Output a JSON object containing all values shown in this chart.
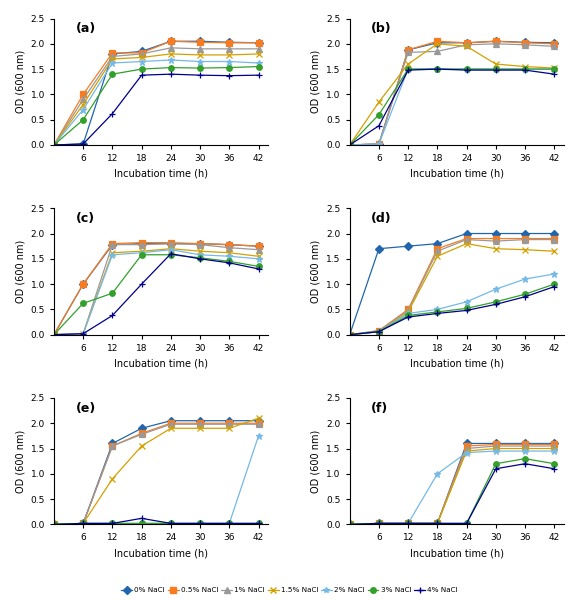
{
  "x": [
    0,
    6,
    12,
    18,
    24,
    30,
    36,
    42
  ],
  "panels": {
    "a": {
      "label": "(a)",
      "series": {
        "0% NaCl": [
          0,
          0.02,
          1.8,
          1.85,
          2.05,
          2.05,
          2.03,
          2.02
        ],
        "0.5% NaCl": [
          0,
          1.0,
          1.82,
          1.82,
          2.05,
          2.03,
          2.02,
          2.02
        ],
        "1% NaCl": [
          0,
          0.9,
          1.75,
          1.8,
          1.92,
          1.9,
          1.9,
          1.9
        ],
        "1.5% NaCl": [
          0,
          0.8,
          1.7,
          1.73,
          1.8,
          1.78,
          1.78,
          1.8
        ],
        "2% NaCl": [
          0,
          0.7,
          1.62,
          1.65,
          1.68,
          1.65,
          1.65,
          1.62
        ],
        "3% NaCl": [
          0,
          0.5,
          1.4,
          1.5,
          1.53,
          1.52,
          1.53,
          1.55
        ],
        "4% NaCl": [
          0,
          0.02,
          0.62,
          1.38,
          1.4,
          1.38,
          1.37,
          1.38
        ]
      }
    },
    "b": {
      "label": "(b)",
      "series": {
        "0% NaCl": [
          0,
          0.02,
          1.88,
          2.02,
          2.02,
          2.05,
          2.03,
          2.02
        ],
        "0.5% NaCl": [
          0,
          0.02,
          1.88,
          2.05,
          2.02,
          2.05,
          2.02,
          2.0
        ],
        "1% NaCl": [
          0,
          0.02,
          1.83,
          1.85,
          1.98,
          2.0,
          1.98,
          1.95
        ],
        "1.5% NaCl": [
          0,
          0.85,
          1.6,
          2.0,
          1.95,
          1.6,
          1.55,
          1.52
        ],
        "2% NaCl": [
          0,
          0.02,
          1.5,
          1.5,
          1.5,
          1.5,
          1.5,
          1.5
        ],
        "3% NaCl": [
          0,
          0.6,
          1.5,
          1.5,
          1.5,
          1.5,
          1.5,
          1.5
        ],
        "4% NaCl": [
          0,
          0.38,
          1.48,
          1.5,
          1.48,
          1.48,
          1.48,
          1.4
        ]
      }
    },
    "c": {
      "label": "(c)",
      "series": {
        "0% NaCl": [
          0,
          1.0,
          1.78,
          1.8,
          1.8,
          1.8,
          1.78,
          1.75
        ],
        "0.5% NaCl": [
          0,
          1.0,
          1.8,
          1.82,
          1.82,
          1.8,
          1.78,
          1.75
        ],
        "1% NaCl": [
          0,
          0.02,
          1.78,
          1.78,
          1.8,
          1.78,
          1.72,
          1.68
        ],
        "1.5% NaCl": [
          0,
          0.02,
          1.62,
          1.65,
          1.7,
          1.65,
          1.62,
          1.55
        ],
        "2% NaCl": [
          0,
          0.02,
          1.58,
          1.62,
          1.68,
          1.58,
          1.55,
          1.5
        ],
        "3% NaCl": [
          0,
          0.62,
          0.82,
          1.58,
          1.58,
          1.52,
          1.45,
          1.35
        ],
        "4% NaCl": [
          0,
          0.02,
          0.38,
          1.0,
          1.6,
          1.5,
          1.42,
          1.3
        ]
      }
    },
    "d": {
      "label": "(d)",
      "series": {
        "0% NaCl": [
          0,
          1.7,
          1.75,
          1.8,
          2.0,
          2.0,
          2.0,
          2.0
        ],
        "0.5% NaCl": [
          0,
          0.08,
          0.5,
          1.7,
          1.9,
          1.9,
          1.9,
          1.9
        ],
        "1% NaCl": [
          0,
          0.08,
          0.48,
          1.65,
          1.88,
          1.85,
          1.88,
          1.88
        ],
        "1.5% NaCl": [
          0,
          0.06,
          0.45,
          1.55,
          1.8,
          1.7,
          1.68,
          1.65
        ],
        "2% NaCl": [
          0,
          0.06,
          0.42,
          0.5,
          0.65,
          0.9,
          1.1,
          1.2
        ],
        "3% NaCl": [
          0,
          0.06,
          0.38,
          0.45,
          0.52,
          0.65,
          0.8,
          1.0
        ],
        "4% NaCl": [
          0,
          0.06,
          0.35,
          0.42,
          0.48,
          0.6,
          0.75,
          0.95
        ]
      }
    },
    "e": {
      "label": "(e)",
      "series": {
        "0% NaCl": [
          0,
          0.02,
          1.6,
          1.9,
          2.05,
          2.05,
          2.05,
          2.05
        ],
        "0.5% NaCl": [
          0,
          0.02,
          1.55,
          1.8,
          2.0,
          2.0,
          2.0,
          2.0
        ],
        "1% NaCl": [
          0,
          0.02,
          1.55,
          1.78,
          1.98,
          1.98,
          1.98,
          1.98
        ],
        "1.5% NaCl": [
          0,
          0.02,
          0.9,
          1.55,
          1.9,
          1.9,
          1.9,
          2.1
        ],
        "2% NaCl": [
          0,
          0.02,
          0.02,
          0.02,
          0.02,
          0.02,
          0.02,
          1.75
        ],
        "3% NaCl": [
          0,
          0.02,
          0.02,
          0.02,
          0.02,
          0.02,
          0.02,
          0.02
        ],
        "4% NaCl": [
          0,
          0.02,
          0.02,
          0.12,
          0.02,
          0.02,
          0.02,
          0.02
        ]
      }
    },
    "f": {
      "label": "(f)",
      "series": {
        "0% NaCl": [
          0,
          0.02,
          0.02,
          0.02,
          1.6,
          1.6,
          1.6,
          1.6
        ],
        "0.5% NaCl": [
          0,
          0.02,
          0.02,
          0.02,
          1.55,
          1.58,
          1.58,
          1.58
        ],
        "1% NaCl": [
          0,
          0.02,
          0.02,
          0.02,
          1.5,
          1.55,
          1.55,
          1.55
        ],
        "1.5% NaCl": [
          0,
          0.02,
          0.02,
          0.02,
          1.45,
          1.5,
          1.5,
          1.5
        ],
        "2% NaCl": [
          0,
          0.02,
          0.02,
          1.0,
          1.42,
          1.45,
          1.45,
          1.45
        ],
        "3% NaCl": [
          0,
          0.02,
          0.02,
          0.02,
          0.02,
          1.2,
          1.3,
          1.2
        ],
        "4% NaCl": [
          0,
          0.02,
          0.02,
          0.02,
          0.02,
          1.1,
          1.2,
          1.1
        ]
      }
    }
  },
  "series_styles": {
    "0% NaCl": {
      "color": "#2166ac",
      "marker": "D",
      "ms": 4
    },
    "0.5% NaCl": {
      "color": "#f97b20",
      "marker": "s",
      "ms": 4
    },
    "1% NaCl": {
      "color": "#999999",
      "marker": "^",
      "ms": 4
    },
    "1.5% NaCl": {
      "color": "#d4a000",
      "marker": "x",
      "ms": 5
    },
    "2% NaCl": {
      "color": "#74b9e7",
      "marker": "*",
      "ms": 5
    },
    "3% NaCl": {
      "color": "#33a02c",
      "marker": "o",
      "ms": 4
    },
    "4% NaCl": {
      "color": "#00008b",
      "marker": "+",
      "ms": 5
    }
  },
  "ylim": [
    0,
    2.5
  ],
  "yticks": [
    0,
    0.5,
    1.0,
    1.5,
    2.0,
    2.5
  ],
  "xlabel": "Incubation time (h)",
  "ylabel": "OD (600 nm)",
  "xticks": [
    6,
    12,
    18,
    24,
    30,
    36,
    42
  ]
}
